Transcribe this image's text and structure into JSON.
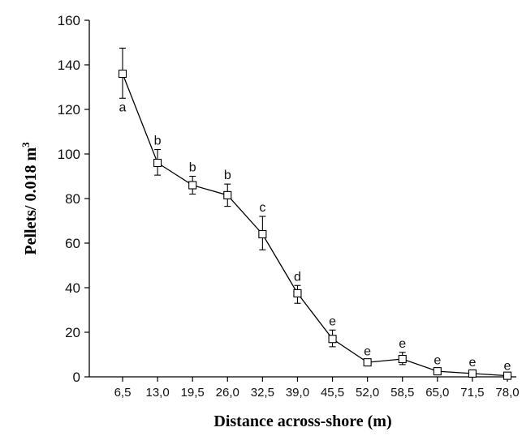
{
  "chart_data": {
    "type": "line",
    "xlabel": "Distance across-shore (m)",
    "ylabel_main": "Pellets/ 0.018 m",
    "ylabel_sup": "3",
    "ylim": [
      0,
      160
    ],
    "y_ticks": [
      "0",
      "20",
      "40",
      "60",
      "80",
      "100",
      "120",
      "140",
      "160"
    ],
    "categories": [
      "6,5",
      "13,0",
      "19,5",
      "26,0",
      "32,5",
      "39,0",
      "45,5",
      "52,0",
      "58,5",
      "65,0",
      "71,5",
      "78,0"
    ],
    "values": [
      136,
      96,
      86,
      81.5,
      64,
      37.5,
      17,
      6.5,
      8,
      2.5,
      1.5,
      0.5
    ],
    "error_low": [
      125,
      90.5,
      82,
      76.5,
      57,
      33,
      13.5,
      5,
      5.5,
      1.5,
      0.5,
      0
    ],
    "error_high": [
      147.5,
      102,
      90,
      86.5,
      72,
      41,
      21,
      7.5,
      11,
      3.5,
      2.5,
      1
    ],
    "significance_letters": [
      "a",
      "b",
      "b",
      "b",
      "c",
      "d",
      "e",
      "e",
      "e",
      "e",
      "e",
      "e"
    ],
    "grid": false,
    "marker": "open-square"
  }
}
